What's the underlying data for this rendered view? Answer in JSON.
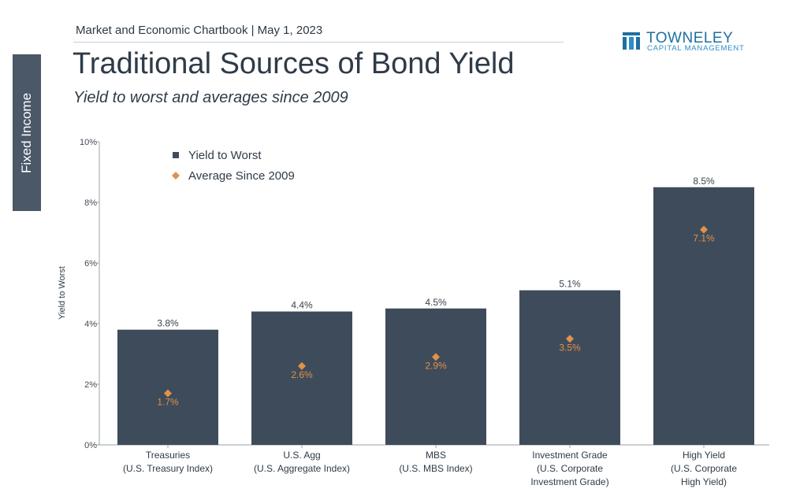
{
  "header": {
    "chartbook": "Market and Economic Chartbook | May 1, 2023",
    "title": "Traditional Sources of Bond Yield",
    "subtitle": "Yield to worst and averages since 2009"
  },
  "side_tab": {
    "label": "Fixed Income"
  },
  "logo": {
    "name": "TOWNELEY",
    "sub": "CAPITAL MANAGEMENT",
    "color": "#1f6fa0"
  },
  "chart_data": {
    "type": "bar",
    "categories": [
      [
        "Treasuries",
        "(U.S. Treasury Index)"
      ],
      [
        "U.S. Agg",
        "(U.S. Aggregate Index)"
      ],
      [
        "MBS",
        "(U.S. MBS Index)"
      ],
      [
        "Investment Grade",
        "(U.S. Corporate",
        "Investment Grade)"
      ],
      [
        "High Yield",
        "(U.S. Corporate",
        "High Yield)"
      ]
    ],
    "series": [
      {
        "name": "Yield to Worst",
        "values": [
          3.8,
          4.4,
          4.5,
          5.1,
          8.5
        ],
        "labels": [
          "3.8%",
          "4.4%",
          "4.5%",
          "5.1%",
          "8.5%"
        ],
        "color": "#3e4b5a",
        "marker": "bar"
      },
      {
        "name": "Average Since 2009",
        "values": [
          1.7,
          2.6,
          2.9,
          3.5,
          7.1
        ],
        "labels": [
          "1.7%",
          "2.6%",
          "2.9%",
          "3.5%",
          "7.1%"
        ],
        "color": "#e0914a",
        "marker": "diamond"
      }
    ],
    "ylabel": "Yield to Worst",
    "yticks": [
      0,
      2,
      4,
      6,
      8,
      10
    ],
    "ytick_labels": [
      "0%",
      "2%",
      "4%",
      "6%",
      "8%",
      "10%"
    ],
    "ylim": [
      0,
      10
    ],
    "grid": false,
    "legend": "top-left"
  }
}
